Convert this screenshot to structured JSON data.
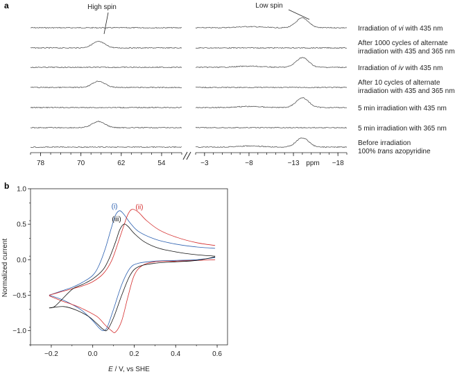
{
  "figure": {
    "panel_a_label": "a",
    "panel_b_label": "b"
  },
  "chart_data": [
    {
      "type": "line",
      "title": "",
      "panel": "a",
      "xlabel": "ppm",
      "annotations": [
        "High spin",
        "Low spin"
      ],
      "left_axis": {
        "ticks": [
          "78",
          "70",
          "62",
          "54"
        ],
        "range": [
          80,
          50
        ]
      },
      "right_axis": {
        "ticks": [
          "−3",
          "−8",
          "−13",
          "−18"
        ],
        "range": [
          -2,
          -19
        ]
      },
      "high_spin_peak_ppm": 66.5,
      "low_spin_peak_ppm": -14.0,
      "traces": [
        {
          "label": [
            "Irradiation of ",
            "vi",
            " with 435 nm"
          ],
          "italic_index": 1,
          "high_spin": 0.0,
          "low_spin": 1.0
        },
        {
          "label": [
            "After 1000 cycles of alternate",
            "irradiation with 435 and 365 nm"
          ],
          "multiline": true,
          "high_spin": 1.0,
          "low_spin": 0.0
        },
        {
          "label": [
            "Irradiation of ",
            "iv",
            " with 435 nm"
          ],
          "italic_index": 1,
          "high_spin": 0.0,
          "low_spin": 1.0
        },
        {
          "label": [
            "After 10 cycles of alternate",
            "irradiation with 435 and 365 nm"
          ],
          "multiline": true,
          "high_spin": 1.0,
          "low_spin": 0.0
        },
        {
          "label": [
            "5 min irradiation with 435 nm"
          ],
          "high_spin": 0.0,
          "low_spin": 1.0
        },
        {
          "label": [
            "5 min irradiation with 365 nm"
          ],
          "high_spin": 1.0,
          "low_spin": 0.0
        },
        {
          "label": [
            "Before irradiation",
            "100% ",
            "trans",
            " azopyridine"
          ],
          "two_line_italic": true,
          "high_spin": 0.0,
          "low_spin": 0.95
        }
      ]
    },
    {
      "type": "line",
      "title": "",
      "panel": "b",
      "xlabel_italic": "E",
      "xlabel_rest": " / V, vs SHE",
      "ylabel": "Normalized current",
      "xlim": [
        -0.3,
        0.65
      ],
      "ylim": [
        -1.2,
        1.0
      ],
      "x_ticks": [
        -0.2,
        0.0,
        0.2,
        0.4,
        0.6
      ],
      "x_tick_labels": [
        "−0.2",
        "0.0",
        "0.2",
        "0.4",
        "0.6"
      ],
      "y_ticks": [
        -1.0,
        -0.5,
        0.0,
        0.5,
        1.0
      ],
      "y_tick_labels": [
        "−1.0",
        "−0.5",
        "0.0",
        "0.5",
        "1.0"
      ],
      "series": [
        {
          "name": "(i)",
          "color": "#2a5fb0",
          "forward": [
            [
              -0.21,
              -0.5
            ],
            [
              -0.15,
              -0.44
            ],
            [
              -0.1,
              -0.39
            ],
            [
              -0.05,
              -0.32
            ],
            [
              0.0,
              -0.22
            ],
            [
              0.03,
              -0.08
            ],
            [
              0.06,
              0.15
            ],
            [
              0.09,
              0.45
            ],
            [
              0.11,
              0.63
            ],
            [
              0.13,
              0.69
            ],
            [
              0.15,
              0.64
            ],
            [
              0.18,
              0.52
            ],
            [
              0.22,
              0.4
            ],
            [
              0.3,
              0.29
            ],
            [
              0.4,
              0.22
            ],
            [
              0.5,
              0.18
            ],
            [
              0.59,
              0.16
            ]
          ],
          "reverse": [
            [
              0.59,
              0.03
            ],
            [
              0.5,
              0.0
            ],
            [
              0.4,
              -0.01
            ],
            [
              0.3,
              -0.02
            ],
            [
              0.22,
              -0.05
            ],
            [
              0.18,
              -0.12
            ],
            [
              0.14,
              -0.35
            ],
            [
              0.1,
              -0.7
            ],
            [
              0.07,
              -0.95
            ],
            [
              0.05,
              -1.0
            ],
            [
              0.03,
              -0.96
            ],
            [
              0.0,
              -0.86
            ],
            [
              -0.05,
              -0.72
            ],
            [
              -0.1,
              -0.63
            ],
            [
              -0.15,
              -0.56
            ],
            [
              -0.21,
              -0.5
            ]
          ]
        },
        {
          "name": "(ii)",
          "color": "#d42a2a",
          "forward": [
            [
              -0.21,
              -0.5
            ],
            [
              -0.15,
              -0.45
            ],
            [
              -0.1,
              -0.41
            ],
            [
              -0.05,
              -0.37
            ],
            [
              0.0,
              -0.31
            ],
            [
              0.05,
              -0.2
            ],
            [
              0.09,
              -0.02
            ],
            [
              0.12,
              0.22
            ],
            [
              0.15,
              0.48
            ],
            [
              0.17,
              0.64
            ],
            [
              0.19,
              0.71
            ],
            [
              0.22,
              0.67
            ],
            [
              0.26,
              0.55
            ],
            [
              0.32,
              0.42
            ],
            [
              0.4,
              0.32
            ],
            [
              0.5,
              0.24
            ],
            [
              0.59,
              0.2
            ]
          ],
          "reverse": [
            [
              0.59,
              0.0
            ],
            [
              0.5,
              -0.01
            ],
            [
              0.4,
              -0.02
            ],
            [
              0.3,
              -0.03
            ],
            [
              0.24,
              -0.08
            ],
            [
              0.2,
              -0.22
            ],
            [
              0.17,
              -0.52
            ],
            [
              0.14,
              -0.86
            ],
            [
              0.11,
              -1.02
            ],
            [
              0.09,
              -1.0
            ],
            [
              0.06,
              -0.92
            ],
            [
              0.02,
              -0.8
            ],
            [
              -0.05,
              -0.69
            ],
            [
              -0.1,
              -0.63
            ],
            [
              -0.15,
              -0.58
            ],
            [
              -0.21,
              -0.51
            ]
          ]
        },
        {
          "name": "(iii)",
          "color": "#111111",
          "forward": [
            [
              -0.21,
              -0.68
            ],
            [
              -0.18,
              -0.65
            ],
            [
              -0.1,
              -0.42
            ],
            [
              -0.05,
              -0.35
            ],
            [
              0.0,
              -0.27
            ],
            [
              0.05,
              -0.14
            ],
            [
              0.08,
              0.02
            ],
            [
              0.11,
              0.25
            ],
            [
              0.13,
              0.42
            ],
            [
              0.15,
              0.5
            ],
            [
              0.17,
              0.47
            ],
            [
              0.2,
              0.37
            ],
            [
              0.25,
              0.25
            ],
            [
              0.32,
              0.16
            ],
            [
              0.42,
              0.1
            ],
            [
              0.5,
              0.07
            ],
            [
              0.59,
              0.05
            ]
          ],
          "reverse": [
            [
              0.59,
              0.04
            ],
            [
              0.5,
              -0.01
            ],
            [
              0.4,
              -0.03
            ],
            [
              0.3,
              -0.05
            ],
            [
              0.22,
              -0.1
            ],
            [
              0.18,
              -0.22
            ],
            [
              0.14,
              -0.5
            ],
            [
              0.1,
              -0.82
            ],
            [
              0.07,
              -0.99
            ],
            [
              0.05,
              -0.98
            ],
            [
              0.02,
              -0.9
            ],
            [
              -0.02,
              -0.8
            ],
            [
              -0.08,
              -0.71
            ],
            [
              -0.14,
              -0.66
            ],
            [
              -0.21,
              -0.68
            ]
          ]
        }
      ]
    }
  ]
}
